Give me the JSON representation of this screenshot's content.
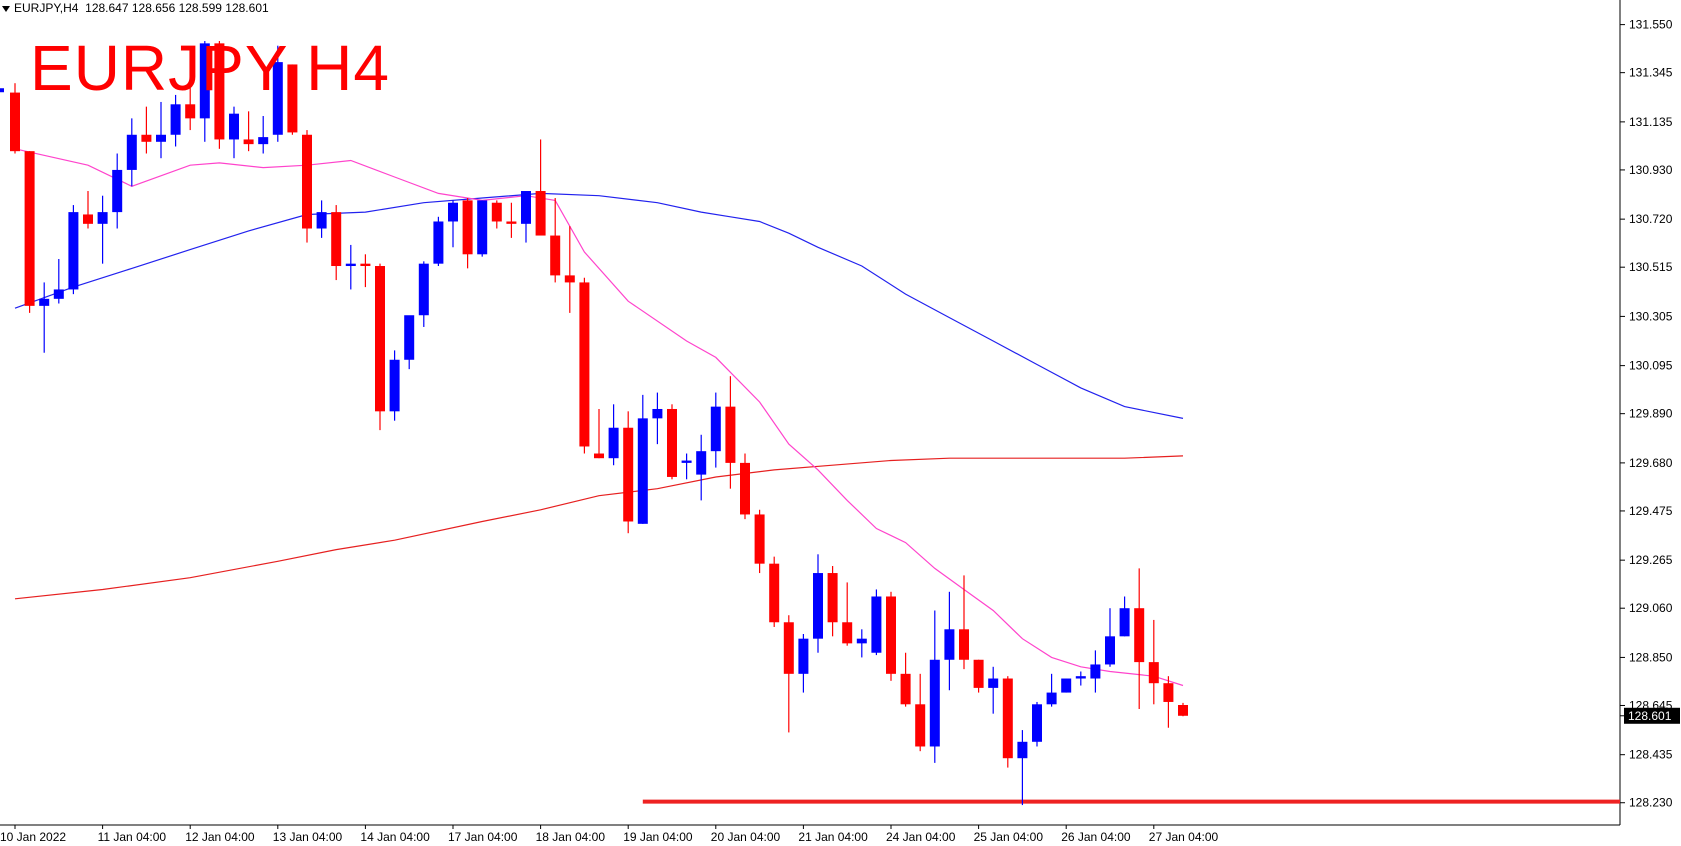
{
  "header": {
    "symbol": "EURJPY,H4",
    "ohlc": "128.647 128.656 128.599 128.601"
  },
  "overlay_label": "EURJPY H4",
  "chart_data": {
    "type": "candlestick",
    "symbol": "EURJPY",
    "timeframe": "H4",
    "current_price": 128.601,
    "ylim": [
      128.135,
      131.655
    ],
    "y_ticks": [
      "131.550",
      "131.345",
      "131.135",
      "130.930",
      "130.720",
      "130.515",
      "130.305",
      "130.095",
      "129.890",
      "129.680",
      "129.475",
      "129.265",
      "129.060",
      "128.850",
      "128.645",
      "128.435",
      "128.230"
    ],
    "x_ticks": [
      {
        "label": "10 Jan 2022",
        "index": 0
      },
      {
        "label": "11 Jan 04:00",
        "index": 6
      },
      {
        "label": "12 Jan 04:00",
        "index": 12
      },
      {
        "label": "13 Jan 04:00",
        "index": 18
      },
      {
        "label": "14 Jan 04:00",
        "index": 24
      },
      {
        "label": "17 Jan 04:00",
        "index": 30
      },
      {
        "label": "18 Jan 04:00",
        "index": 36
      },
      {
        "label": "19 Jan 04:00",
        "index": 42
      },
      {
        "label": "20 Jan 04:00",
        "index": 48
      },
      {
        "label": "21 Jan 04:00",
        "index": 54
      },
      {
        "label": "24 Jan 04:00",
        "index": 60
      },
      {
        "label": "25 Jan 04:00",
        "index": 66
      },
      {
        "label": "26 Jan 04:00",
        "index": 72
      },
      {
        "label": "27 Jan 04:00",
        "index": 78
      }
    ],
    "candles": [
      [
        131.26,
        131.3,
        131.0,
        131.01
      ],
      [
        131.01,
        131.01,
        130.32,
        130.35
      ],
      [
        130.35,
        130.45,
        130.15,
        130.38
      ],
      [
        130.38,
        130.55,
        130.36,
        130.42
      ],
      [
        130.42,
        130.78,
        130.4,
        130.75
      ],
      [
        130.74,
        130.84,
        130.68,
        130.7
      ],
      [
        130.7,
        130.82,
        130.53,
        130.75
      ],
      [
        130.75,
        131.0,
        130.68,
        130.93
      ],
      [
        130.93,
        131.15,
        130.86,
        131.08
      ],
      [
        131.08,
        131.2,
        131.0,
        131.05
      ],
      [
        131.05,
        131.22,
        130.98,
        131.08
      ],
      [
        131.08,
        131.25,
        131.03,
        131.21
      ],
      [
        131.21,
        131.28,
        131.1,
        131.15
      ],
      [
        131.15,
        131.48,
        131.05,
        131.47
      ],
      [
        131.47,
        131.48,
        131.02,
        131.06
      ],
      [
        131.06,
        131.2,
        130.98,
        131.17
      ],
      [
        131.06,
        131.18,
        131.01,
        131.04
      ],
      [
        131.04,
        131.16,
        131.0,
        131.07
      ],
      [
        131.08,
        131.46,
        131.05,
        131.39
      ],
      [
        131.38,
        131.38,
        131.08,
        131.09
      ],
      [
        131.08,
        131.1,
        130.62,
        130.68
      ],
      [
        130.68,
        130.8,
        130.64,
        130.75
      ],
      [
        130.75,
        130.78,
        130.46,
        130.52
      ],
      [
        130.52,
        130.61,
        130.42,
        130.53
      ],
      [
        130.53,
        130.57,
        130.43,
        130.52
      ],
      [
        130.52,
        130.53,
        129.82,
        129.9
      ],
      [
        129.9,
        130.16,
        129.86,
        130.12
      ],
      [
        130.12,
        130.3,
        130.08,
        130.31
      ],
      [
        130.31,
        130.54,
        130.26,
        130.53
      ],
      [
        130.53,
        130.73,
        130.52,
        130.71
      ],
      [
        130.71,
        130.8,
        130.6,
        130.79
      ],
      [
        130.8,
        130.81,
        130.51,
        130.57
      ],
      [
        130.57,
        130.8,
        130.56,
        130.8
      ],
      [
        130.79,
        130.8,
        130.68,
        130.71
      ],
      [
        130.71,
        130.79,
        130.64,
        130.7
      ],
      [
        130.7,
        130.83,
        130.62,
        130.84
      ],
      [
        130.84,
        131.06,
        130.68,
        130.65
      ],
      [
        130.65,
        130.81,
        130.45,
        130.48
      ],
      [
        130.48,
        130.69,
        130.32,
        130.45
      ],
      [
        130.45,
        130.47,
        129.72,
        129.75
      ],
      [
        129.72,
        129.91,
        129.7,
        129.7
      ],
      [
        129.7,
        129.93,
        129.67,
        129.83
      ],
      [
        129.83,
        129.9,
        129.38,
        129.43
      ],
      [
        129.42,
        129.97,
        129.42,
        129.87
      ],
      [
        129.87,
        129.98,
        129.76,
        129.91
      ],
      [
        129.91,
        129.93,
        129.61,
        129.62
      ],
      [
        129.68,
        129.72,
        129.61,
        129.69
      ],
      [
        129.63,
        129.8,
        129.52,
        129.73
      ],
      [
        129.73,
        129.98,
        129.66,
        129.92
      ],
      [
        129.92,
        130.05,
        129.57,
        129.68
      ],
      [
        129.68,
        129.72,
        129.44,
        129.46
      ],
      [
        129.46,
        129.48,
        129.21,
        129.25
      ],
      [
        129.25,
        129.28,
        128.98,
        129.0
      ],
      [
        129.0,
        129.03,
        128.53,
        128.78
      ],
      [
        128.78,
        128.95,
        128.7,
        128.93
      ],
      [
        128.93,
        129.29,
        128.87,
        129.21
      ],
      [
        129.21,
        129.24,
        128.94,
        129.0
      ],
      [
        129.0,
        129.17,
        128.9,
        128.91
      ],
      [
        128.91,
        128.97,
        128.85,
        128.93
      ],
      [
        128.87,
        129.14,
        128.86,
        129.11
      ],
      [
        129.11,
        129.13,
        128.75,
        128.78
      ],
      [
        128.78,
        128.87,
        128.64,
        128.65
      ],
      [
        128.65,
        128.78,
        128.45,
        128.47
      ],
      [
        128.47,
        129.05,
        128.4,
        128.84
      ],
      [
        128.84,
        129.13,
        128.71,
        128.97
      ],
      [
        128.97,
        129.2,
        128.8,
        128.84
      ],
      [
        128.84,
        128.84,
        128.7,
        128.72
      ],
      [
        128.72,
        128.81,
        128.61,
        128.76
      ],
      [
        128.76,
        128.77,
        128.38,
        128.42
      ],
      [
        128.42,
        128.54,
        128.22,
        128.49
      ],
      [
        128.49,
        128.66,
        128.47,
        128.65
      ],
      [
        128.65,
        128.78,
        128.64,
        128.7
      ],
      [
        128.7,
        128.76,
        128.7,
        128.76
      ],
      [
        128.76,
        128.79,
        128.73,
        128.77
      ],
      [
        128.76,
        128.88,
        128.7,
        128.82
      ],
      [
        128.82,
        129.06,
        128.81,
        128.94
      ],
      [
        128.94,
        129.11,
        128.94,
        129.06
      ],
      [
        129.06,
        129.23,
        128.63,
        128.83
      ],
      [
        128.83,
        129.01,
        128.65,
        128.74
      ],
      [
        128.74,
        128.77,
        128.55,
        128.66
      ],
      [
        128.647,
        128.656,
        128.599,
        128.601
      ]
    ],
    "ma_fast": [
      [
        0,
        131.02
      ],
      [
        5,
        130.95
      ],
      [
        8,
        130.86
      ],
      [
        12,
        130.95
      ],
      [
        14,
        130.96
      ],
      [
        17,
        130.94
      ],
      [
        20,
        130.95
      ],
      [
        23,
        130.97
      ],
      [
        26,
        130.9
      ],
      [
        29,
        130.83
      ],
      [
        32,
        130.8
      ],
      [
        35,
        130.82
      ],
      [
        37,
        130.8
      ],
      [
        39,
        130.58
      ],
      [
        42,
        130.37
      ],
      [
        46,
        130.2
      ],
      [
        48,
        130.13
      ],
      [
        51,
        129.94
      ],
      [
        53,
        129.76
      ],
      [
        55,
        129.65
      ],
      [
        57,
        129.52
      ],
      [
        59,
        129.4
      ],
      [
        61,
        129.34
      ],
      [
        63,
        129.23
      ],
      [
        65,
        129.14
      ],
      [
        67,
        129.05
      ],
      [
        69,
        128.93
      ],
      [
        71,
        128.85
      ],
      [
        73,
        128.81
      ],
      [
        75,
        128.79
      ],
      [
        78,
        128.77
      ],
      [
        80,
        128.73
      ]
    ],
    "ma_medium": [
      [
        0,
        130.34
      ],
      [
        4,
        130.43
      ],
      [
        8,
        130.51
      ],
      [
        12,
        130.59
      ],
      [
        16,
        130.67
      ],
      [
        20,
        130.74
      ],
      [
        24,
        130.75
      ],
      [
        28,
        130.79
      ],
      [
        32,
        130.81
      ],
      [
        36,
        130.83
      ],
      [
        40,
        130.82
      ],
      [
        44,
        130.79
      ],
      [
        47,
        130.75
      ],
      [
        49,
        130.73
      ],
      [
        51,
        130.71
      ],
      [
        53,
        130.66
      ],
      [
        55,
        130.6
      ],
      [
        58,
        130.52
      ],
      [
        61,
        130.4
      ],
      [
        64,
        130.3
      ],
      [
        67,
        130.2
      ],
      [
        70,
        130.1
      ],
      [
        73,
        130.0
      ],
      [
        76,
        129.92
      ],
      [
        80,
        129.87
      ]
    ],
    "ma_slow": [
      [
        0,
        129.1
      ],
      [
        6,
        129.14
      ],
      [
        12,
        129.19
      ],
      [
        18,
        129.26
      ],
      [
        22,
        129.31
      ],
      [
        26,
        129.35
      ],
      [
        32,
        129.43
      ],
      [
        36,
        129.48
      ],
      [
        40,
        129.54
      ],
      [
        44,
        129.57
      ],
      [
        48,
        129.62
      ],
      [
        52,
        129.65
      ],
      [
        56,
        129.67
      ],
      [
        60,
        129.69
      ],
      [
        64,
        129.7
      ],
      [
        68,
        129.7
      ],
      [
        72,
        129.7
      ],
      [
        76,
        129.7
      ],
      [
        80,
        129.71
      ]
    ],
    "support_line": {
      "price": 128.235,
      "from_index": 43
    },
    "colors": {
      "bull": "#0000ff",
      "bear": "#ff0000",
      "ma_fast": "#ff44cc",
      "ma_medium": "#2222ee",
      "ma_slow": "#e62020",
      "support": "#ee2222",
      "price_tag_bg": "#000000",
      "price_tag_text": "#ffffff"
    }
  }
}
